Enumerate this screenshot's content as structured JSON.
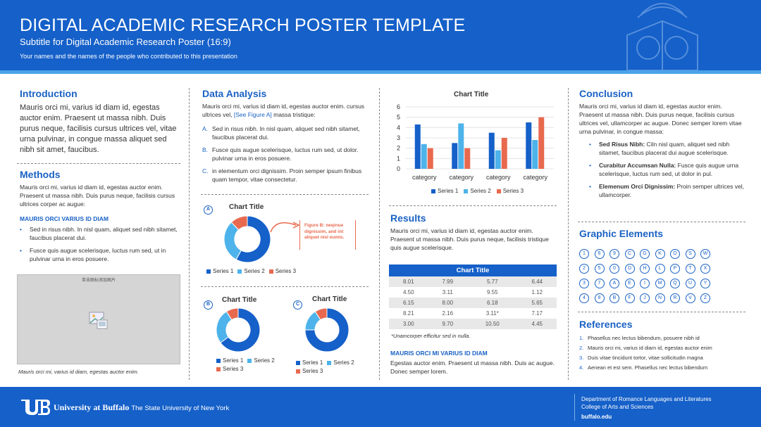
{
  "header": {
    "title": "DIGITAL ACADEMIC RESEARCH POSTER TEMPLATE",
    "subtitle": "Subtitle for Digital Academic Research Poster (16:9)",
    "authors": "Your names and the names of the people who contributed to this presentation"
  },
  "intro": {
    "heading": "Introduction",
    "text": "Mauris orci mi, varius id diam id, egestas auctor enim. Praesent ut massa nibh. Duis purus neque, facilisis cursus ultrices vel, vitae urna pulvinar, in congue massa aliquet sed nibh sit amet, faucibus."
  },
  "methods": {
    "heading": "Methods",
    "text": "Mauris orci mi, varius id diam id, egestas auctor enim. Praesent ut massa nibh. Duis purus neque, facilisis cursus ultrices corper ac augue:",
    "subheading": "MAURIS ORCI VARIUS ID DIAM",
    "bullets": [
      "Sed in risus nibh. In nisl quam, aliquet sed nibh sitamet, faucibus placerat dui.",
      "Fusce quis augue scelerisque, luctus rum sed, ut in pulvinar urna in eros posuere."
    ],
    "placeholder_label": "单击图标添加图片",
    "caption": "Mauris orci mi, varius id diam, egestas auctor enim."
  },
  "data_analysis": {
    "heading": "Data Analysis",
    "text_before": "Mauris orci mi, varius id diam id, egestas auctor enim. cursus ultrices vel, ",
    "link": "[See Figure A]",
    "text_after": " massa tristique:",
    "list": [
      {
        "marker": "A.",
        "text": "Sed in risus nibh. In nisl quam, aliquet sed nibh sitamet, faucibus placerat dui."
      },
      {
        "marker": "B.",
        "text": "Fusce quis augue scelerisque, luctus rum sed, ut dolor. pulvinar urna in eros posuere."
      },
      {
        "marker": "C.",
        "text": "in elementum orci dignissim. Proin semper ipsum finibus quam tempor, vitae consectetur."
      }
    ],
    "callout": "Figure B: neqinue dignissim, and  int aliquet nisl eumis."
  },
  "results": {
    "heading": "Results",
    "text": "Mauris orci mi, varius id diam id, egestas auctor enim. Praesent ut massa nibh. Duis purus neque, facilisis tristique quis augue scelerisque.",
    "table_title": "Chart Title",
    "table_rows": [
      [
        "8.01",
        "7.99",
        "5.77",
        "6.44"
      ],
      [
        "4.50",
        "3.11",
        "9.55",
        "1.12"
      ],
      [
        "6.15",
        "8.00",
        "6.18",
        "5.65"
      ],
      [
        "8.21",
        "2.16",
        "3.11*",
        "7.17"
      ],
      [
        "3.00",
        "9.70",
        "10.50",
        "4.45"
      ]
    ],
    "footnote": "*Unamcorper efficitur sed in nulla.",
    "subheading": "MAURIS ORCI MI VARIUS ID DIAM",
    "subtext": "Egestas auctor enim. Praesent ut massa nibh. Duis ac augue. Donec semper lorem."
  },
  "conclusion": {
    "heading": "Conclusion",
    "text": "Mauris orci mi, varius id diam id, egestas auctor enim. Praesent ut massa nibh. Duis purus neque, facilisis cursus ultrices vel, ullamcorper ac augue. Donec semper lorem vitae urna pulvinar, in congue massa:",
    "bullets": [
      {
        "bold": "Sed Risus Nibh:",
        "text": " Ciln nisl quam, aliquet sed nibh sitamet, faucibus placerat dui augue scelerisque."
      },
      {
        "bold": "Curabitur Accumsan Nulla:",
        "text": " Fusce quis augue urna scelerisque, luctus rum sed, ut dolor in pul."
      },
      {
        "bold": "Elemenum Orci Dignissim:",
        "text": " Proin semper ultrices vel, ullamcorper."
      }
    ]
  },
  "graphic_elements": {
    "heading": "Graphic Elements",
    "rows": [
      [
        "1",
        "6",
        "9",
        "C",
        "G",
        "K",
        "O",
        "S",
        "W"
      ],
      [
        "2",
        "5",
        "0",
        "D",
        "H",
        "L",
        "P",
        "T",
        "X"
      ],
      [
        "3",
        "7",
        "A",
        "E",
        "I",
        "M",
        "Q",
        "U",
        "Y"
      ],
      [
        "4",
        "8",
        "B",
        "F",
        "J",
        "N",
        "R",
        "V",
        "Z"
      ]
    ]
  },
  "references": {
    "heading": "References",
    "items": [
      {
        "marker": "1.",
        "text": "Phasellus nec lectus bibendum, posuere nibh id"
      },
      {
        "marker": "2.",
        "text": "Mauris orci mi, varius id diam id, egestas auctor enim"
      },
      {
        "marker": "3.",
        "text": "Duis vitae tincidunt tortor, vitae sollicitudin magna"
      },
      {
        "marker": "4.",
        "text": "Aenean et est sem. Phasellus nec lectus bibendum"
      }
    ]
  },
  "footer": {
    "university": "University at Buffalo",
    "tagline": "The State University of New York",
    "dept1": "Department of Romance Languages and Literatures",
    "dept2": "College of Arts and Sciences",
    "url": "buffalo.edu"
  },
  "colors": {
    "series1": "#1560c9",
    "series2": "#4db3ea",
    "series3": "#e8694e",
    "brand": "#1560c9"
  },
  "chart_data": [
    {
      "type": "bar",
      "title": "Chart Title",
      "categories": [
        "category",
        "category",
        "category",
        "category"
      ],
      "series": [
        {
          "name": "Series 1",
          "values": [
            4.3,
            2.5,
            3.5,
            4.5
          ]
        },
        {
          "name": "Series 2",
          "values": [
            2.4,
            4.4,
            1.8,
            2.8
          ]
        },
        {
          "name": "Series 3",
          "values": [
            2.0,
            2.0,
            3.0,
            5.0
          ]
        }
      ],
      "ylim": [
        0,
        6
      ],
      "yticks": [
        "0",
        "1",
        "2",
        "3",
        "4",
        "5",
        "6"
      ],
      "grid": true,
      "legend": "bottom"
    },
    {
      "type": "pie",
      "badge": "A",
      "title": "Chart Title",
      "labels": [
        "Series 1",
        "Series 2",
        "Series 3"
      ],
      "values": [
        58,
        30,
        12
      ],
      "legend": "bottom"
    },
    {
      "type": "pie",
      "badge": "B",
      "title": "Chart Title",
      "labels": [
        "Series 1",
        "Series 2",
        "Series 3"
      ],
      "values": [
        65,
        26,
        9
      ],
      "legend": "bottom"
    },
    {
      "type": "pie",
      "badge": "C",
      "title": "Chart Title",
      "labels": [
        "Series 1",
        "Series 2",
        "Series 3"
      ],
      "values": [
        75,
        16,
        9
      ],
      "legend": "bottom"
    }
  ]
}
